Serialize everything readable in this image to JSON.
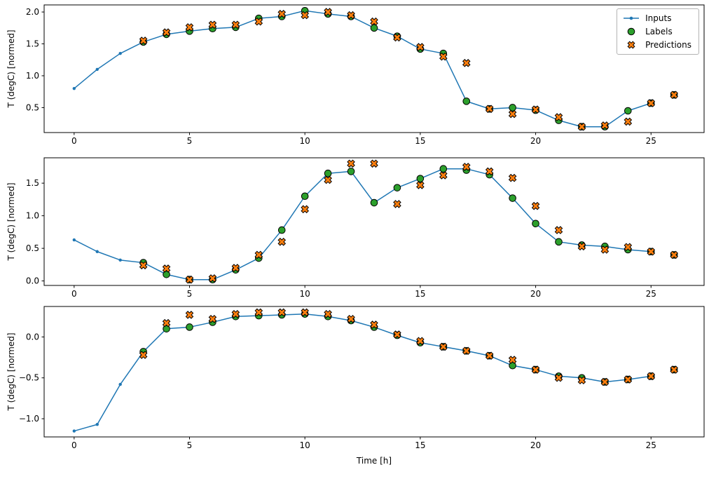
{
  "figure": {
    "xlabel": "Time [h]",
    "ylabel": "T (degC) [normed]"
  },
  "legend": {
    "items": [
      {
        "label": "Inputs"
      },
      {
        "label": "Labels"
      },
      {
        "label": "Predictions"
      }
    ]
  },
  "style": {
    "inputs_color": "#1f77b4",
    "labels_color": "#2ca02c",
    "labels_edge_color": "#000000",
    "predictions_color": "#ff7f0e",
    "predictions_edge_color": "#000000",
    "axis_color": "#000000",
    "tick_label_color": "#000000"
  },
  "chart_data": [
    {
      "type": "line",
      "title": "",
      "xlabel": "",
      "ylabel": "T (degC) [normed]",
      "xlim": [
        -1.3,
        27.3
      ],
      "ylim": [
        0.109,
        2.111
      ],
      "grid": false,
      "legend_position": "upper right",
      "xticks": [
        0,
        5,
        10,
        15,
        20,
        25
      ],
      "xtick_labels": [
        "0",
        "5",
        "10",
        "15",
        "20",
        "25"
      ],
      "yticks": [
        0.5,
        1.0,
        1.5,
        2.0
      ],
      "ytick_labels": [
        "0.5",
        "1.0",
        "1.5",
        "2.0"
      ],
      "series": [
        {
          "name": "Inputs",
          "marker": "line-dot",
          "x": [
            0,
            1,
            2,
            3,
            4,
            5,
            6,
            7,
            8,
            9,
            10,
            11,
            12,
            13,
            14,
            15,
            16,
            17,
            18,
            19,
            20,
            21,
            22,
            23,
            24,
            25
          ],
          "y": [
            0.8,
            1.1,
            1.35,
            1.53,
            1.65,
            1.7,
            1.74,
            1.76,
            1.9,
            1.93,
            2.02,
            1.97,
            1.93,
            1.75,
            1.62,
            1.42,
            1.35,
            0.6,
            0.48,
            0.5,
            0.46,
            0.3,
            0.2,
            0.2,
            0.45,
            0.57
          ]
        },
        {
          "name": "Labels",
          "marker": "circle",
          "x": [
            3,
            4,
            5,
            6,
            7,
            8,
            9,
            10,
            11,
            12,
            13,
            14,
            15,
            16,
            17,
            18,
            19,
            20,
            21,
            22,
            23,
            24,
            25,
            26
          ],
          "y": [
            1.53,
            1.65,
            1.7,
            1.74,
            1.76,
            1.9,
            1.93,
            2.02,
            1.97,
            1.93,
            1.75,
            1.62,
            1.42,
            1.35,
            0.6,
            0.48,
            0.5,
            0.46,
            0.3,
            0.2,
            0.2,
            0.45,
            0.57,
            0.7
          ]
        },
        {
          "name": "Predictions",
          "marker": "x",
          "x": [
            3,
            4,
            5,
            6,
            7,
            8,
            9,
            10,
            11,
            12,
            13,
            14,
            15,
            16,
            17,
            18,
            19,
            20,
            21,
            22,
            23,
            24,
            25,
            26
          ],
          "y": [
            1.55,
            1.68,
            1.76,
            1.8,
            1.8,
            1.85,
            1.97,
            1.95,
            2.0,
            1.95,
            1.85,
            1.6,
            1.45,
            1.3,
            1.2,
            0.48,
            0.4,
            0.47,
            0.35,
            0.2,
            0.22,
            0.28,
            0.57,
            0.7
          ]
        }
      ]
    },
    {
      "type": "line",
      "title": "",
      "xlabel": "",
      "ylabel": "T (degC) [normed]",
      "xlim": [
        -1.3,
        27.3
      ],
      "ylim": [
        -0.069,
        1.889
      ],
      "grid": false,
      "xticks": [
        0,
        5,
        10,
        15,
        20,
        25
      ],
      "xtick_labels": [
        "0",
        "5",
        "10",
        "15",
        "20",
        "25"
      ],
      "yticks": [
        0.0,
        0.5,
        1.0,
        1.5
      ],
      "ytick_labels": [
        "0.0",
        "0.5",
        "1.0",
        "1.5"
      ],
      "series": [
        {
          "name": "Inputs",
          "marker": "line-dot",
          "x": [
            0,
            1,
            2,
            3,
            4,
            5,
            6,
            7,
            8,
            9,
            10,
            11,
            12,
            13,
            14,
            15,
            16,
            17,
            18,
            19,
            20,
            21,
            22,
            23,
            24,
            25
          ],
          "y": [
            0.63,
            0.45,
            0.32,
            0.28,
            0.1,
            0.02,
            0.02,
            0.17,
            0.35,
            0.78,
            1.3,
            1.65,
            1.68,
            1.2,
            1.43,
            1.57,
            1.72,
            1.72,
            1.63,
            1.27,
            0.88,
            0.6,
            0.55,
            0.53,
            0.48,
            0.45
          ]
        },
        {
          "name": "Labels",
          "marker": "circle",
          "x": [
            3,
            4,
            5,
            6,
            7,
            8,
            9,
            10,
            11,
            12,
            13,
            14,
            15,
            16,
            17,
            18,
            19,
            20,
            21,
            22,
            23,
            24,
            25,
            26
          ],
          "y": [
            0.28,
            0.1,
            0.02,
            0.02,
            0.17,
            0.35,
            0.78,
            1.3,
            1.65,
            1.68,
            1.2,
            1.43,
            1.57,
            1.72,
            1.7,
            1.63,
            1.27,
            0.88,
            0.6,
            0.55,
            0.53,
            0.48,
            0.45,
            0.4
          ]
        },
        {
          "name": "Predictions",
          "marker": "x",
          "x": [
            3,
            4,
            5,
            6,
            7,
            8,
            9,
            10,
            11,
            12,
            13,
            14,
            15,
            16,
            17,
            18,
            19,
            20,
            21,
            22,
            23,
            24,
            25,
            26
          ],
          "y": [
            0.24,
            0.19,
            0.02,
            0.04,
            0.2,
            0.4,
            0.6,
            1.1,
            1.55,
            1.8,
            1.8,
            1.18,
            1.47,
            1.62,
            1.75,
            1.68,
            1.58,
            1.15,
            0.78,
            0.53,
            0.48,
            0.52,
            0.45,
            0.4
          ]
        }
      ]
    },
    {
      "type": "line",
      "title": "",
      "xlabel": "Time [h]",
      "ylabel": "T (degC) [normed]",
      "xlim": [
        -1.3,
        27.3
      ],
      "ylim": [
        -1.2225,
        0.3725
      ],
      "grid": false,
      "xticks": [
        0,
        5,
        10,
        15,
        20,
        25
      ],
      "xtick_labels": [
        "0",
        "5",
        "10",
        "15",
        "20",
        "25"
      ],
      "yticks": [
        -1.0,
        -0.5,
        0.0
      ],
      "ytick_labels": [
        "−1.0",
        "−0.5",
        "0.0"
      ],
      "series": [
        {
          "name": "Inputs",
          "marker": "line-dot",
          "x": [
            0,
            1,
            2,
            3,
            4,
            5,
            6,
            7,
            8,
            9,
            10,
            11,
            12,
            13,
            14,
            15,
            16,
            17,
            18,
            19,
            20,
            21,
            22,
            23,
            24,
            25
          ],
          "y": [
            -1.15,
            -1.07,
            -0.58,
            -0.18,
            0.1,
            0.12,
            0.18,
            0.25,
            0.26,
            0.27,
            0.28,
            0.25,
            0.2,
            0.12,
            0.02,
            -0.07,
            -0.12,
            -0.17,
            -0.23,
            -0.35,
            -0.4,
            -0.48,
            -0.5,
            -0.55,
            -0.52,
            -0.48
          ]
        },
        {
          "name": "Labels",
          "marker": "circle",
          "x": [
            3,
            4,
            5,
            6,
            7,
            8,
            9,
            10,
            11,
            12,
            13,
            14,
            15,
            16,
            17,
            18,
            19,
            20,
            21,
            22,
            23,
            24,
            25,
            26
          ],
          "y": [
            -0.18,
            0.1,
            0.12,
            0.18,
            0.25,
            0.26,
            0.27,
            0.28,
            0.25,
            0.2,
            0.12,
            0.02,
            -0.07,
            -0.12,
            -0.17,
            -0.23,
            -0.35,
            -0.4,
            -0.48,
            -0.5,
            -0.55,
            -0.52,
            -0.48,
            -0.4
          ]
        },
        {
          "name": "Predictions",
          "marker": "x",
          "x": [
            3,
            4,
            5,
            6,
            7,
            8,
            9,
            10,
            11,
            12,
            13,
            14,
            15,
            16,
            17,
            18,
            19,
            20,
            21,
            22,
            23,
            24,
            25,
            26
          ],
          "y": [
            -0.22,
            0.17,
            0.27,
            0.22,
            0.28,
            0.3,
            0.3,
            0.3,
            0.28,
            0.22,
            0.15,
            0.03,
            -0.05,
            -0.12,
            -0.17,
            -0.23,
            -0.28,
            -0.4,
            -0.5,
            -0.53,
            -0.55,
            -0.52,
            -0.48,
            -0.4
          ]
        }
      ]
    }
  ]
}
